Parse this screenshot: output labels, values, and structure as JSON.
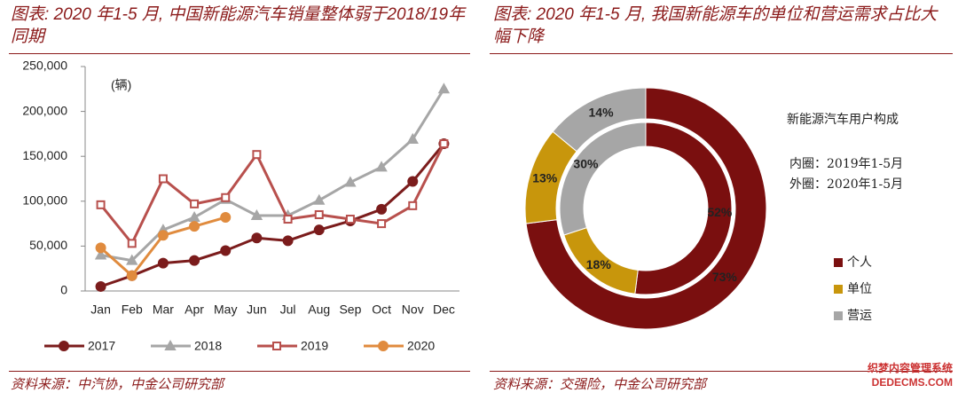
{
  "chart_data": [
    {
      "type": "line",
      "title": "图表: 2020 年1-5 月, 中国新能源汽车销量整体弱于2018/19年同期",
      "annotation": "(辆)",
      "source": "资料来源：中汽协，中金公司研究部",
      "categories": [
        "Jan",
        "Feb",
        "Mar",
        "Apr",
        "May",
        "Jun",
        "Jul",
        "Aug",
        "Sep",
        "Oct",
        "Nov",
        "Dec"
      ],
      "ylim": [
        0,
        250000
      ],
      "yticks": [
        0,
        {
          "value": 50000,
          "label": "50,000"
        },
        {
          "value": 100000,
          "label": "100,000"
        },
        {
          "value": 150000,
          "label": "150,000"
        },
        {
          "value": 200000,
          "label": "200,000"
        },
        {
          "value": 250000,
          "label": "250,000"
        }
      ],
      "series": [
        {
          "name": "2017",
          "color": "#7b1c1c",
          "marker": "circle",
          "filled": true,
          "values": [
            5000,
            17000,
            31000,
            34000,
            45000,
            59000,
            56000,
            68000,
            78000,
            91000,
            122000,
            164000
          ]
        },
        {
          "name": "2018",
          "color": "#a6a6a6",
          "marker": "triangle",
          "filled": true,
          "values": [
            40000,
            34000,
            68000,
            82000,
            102000,
            84000,
            84000,
            101000,
            121000,
            138000,
            169000,
            225000
          ]
        },
        {
          "name": "2019",
          "color": "#b8504d",
          "marker": "square",
          "filled": false,
          "values": [
            96000,
            53000,
            125000,
            97000,
            104000,
            152000,
            80000,
            85000,
            80000,
            75000,
            95000,
            164000
          ]
        },
        {
          "name": "2020",
          "color": "#e08b3e",
          "marker": "circle",
          "filled": true,
          "values": [
            48000,
            17000,
            62000,
            72000,
            82000,
            null,
            null,
            null,
            null,
            null,
            null,
            null
          ]
        }
      ]
    },
    {
      "type": "donut",
      "title": "图表: 2020 年1-5 月, 我国新能源车的单位和营运需求占比大幅下降",
      "source": "资料来源：交强险，中金公司研究部",
      "legend_title": "新能源汽车用户构成",
      "notes": [
        "内圈：2019年1-5月",
        "外圈：2020年1-5月"
      ],
      "categories": [
        "个人",
        "单位",
        "营运"
      ],
      "colors": [
        "#7a0f0f",
        "#c8960c",
        "#a6a6a6"
      ],
      "rings": [
        {
          "values": [
            52,
            18,
            30
          ],
          "value_labels": [
            "52%",
            "18%",
            "30%"
          ]
        },
        {
          "values": [
            73,
            13,
            14
          ],
          "value_labels": [
            "73%",
            "13%",
            "14%"
          ]
        }
      ]
    }
  ],
  "watermark": [
    "织梦内容管理系统",
    "DEDECMS.COM"
  ]
}
